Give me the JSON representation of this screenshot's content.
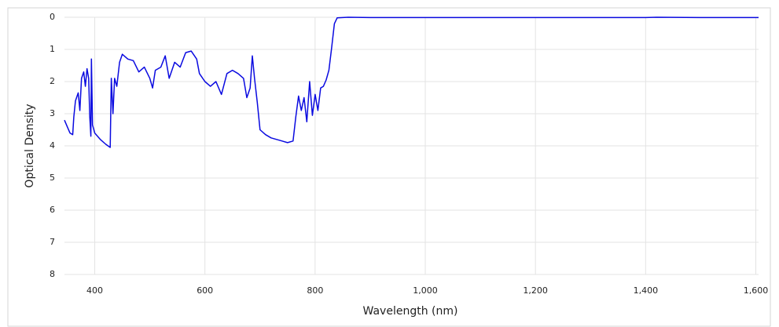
{
  "chart_data": {
    "type": "line",
    "x_label": "Wavelength (nm)",
    "y_label": "Optical Density",
    "x": [
      345,
      350,
      355,
      360,
      362,
      365,
      370,
      373,
      376,
      380,
      383,
      386,
      389,
      391,
      393,
      394,
      396,
      400,
      410,
      420,
      428,
      430,
      433,
      436,
      440,
      445,
      450,
      460,
      470,
      480,
      490,
      500,
      505,
      510,
      520,
      528,
      535,
      545,
      555,
      565,
      575,
      585,
      590,
      600,
      610,
      620,
      630,
      640,
      650,
      660,
      670,
      676,
      682,
      686,
      690,
      695,
      700,
      710,
      720,
      730,
      740,
      750,
      760,
      765,
      770,
      775,
      780,
      785,
      790,
      795,
      800,
      805,
      810,
      815,
      820,
      825,
      830,
      835,
      840,
      860,
      900,
      1000,
      1100,
      1200,
      1300,
      1400,
      1420,
      1500,
      1605
    ],
    "series": [
      {
        "name": "Optical Density",
        "color": "#0a0ae0",
        "values": [
          3.2,
          3.4,
          3.6,
          3.65,
          3.1,
          2.6,
          2.35,
          2.9,
          1.9,
          1.7,
          2.15,
          1.6,
          1.9,
          3.1,
          3.7,
          1.3,
          3.35,
          3.6,
          3.8,
          3.95,
          4.05,
          1.9,
          3.0,
          1.9,
          2.15,
          1.4,
          1.15,
          1.3,
          1.35,
          1.7,
          1.55,
          1.9,
          2.2,
          1.65,
          1.55,
          1.2,
          1.9,
          1.4,
          1.55,
          1.1,
          1.05,
          1.3,
          1.75,
          2.0,
          2.15,
          2.0,
          2.4,
          1.75,
          1.65,
          1.75,
          1.9,
          2.5,
          2.2,
          1.2,
          1.9,
          2.65,
          3.5,
          3.65,
          3.75,
          3.8,
          3.85,
          3.9,
          3.85,
          3.1,
          2.45,
          2.9,
          2.5,
          3.25,
          2.0,
          3.05,
          2.4,
          2.9,
          2.2,
          2.15,
          1.95,
          1.65,
          0.95,
          0.2,
          0.02,
          0,
          0.01,
          0.01,
          0.01,
          0.01,
          0.01,
          0.01,
          0,
          0.01,
          0.01
        ]
      }
    ],
    "xlim": [
      345,
      1605
    ],
    "xticks": [
      400,
      600,
      800,
      {
        "value": 1000,
        "label": "1,000"
      },
      {
        "value": 1200,
        "label": "1,200"
      },
      {
        "value": 1400,
        "label": "1,400"
      },
      {
        "value": 1600,
        "label": "1,600"
      }
    ],
    "ylim": [
      0,
      8
    ],
    "y_inverted": true,
    "yticks": [
      0,
      1,
      2,
      3,
      4,
      5,
      6,
      7,
      8
    ],
    "grid": true
  }
}
